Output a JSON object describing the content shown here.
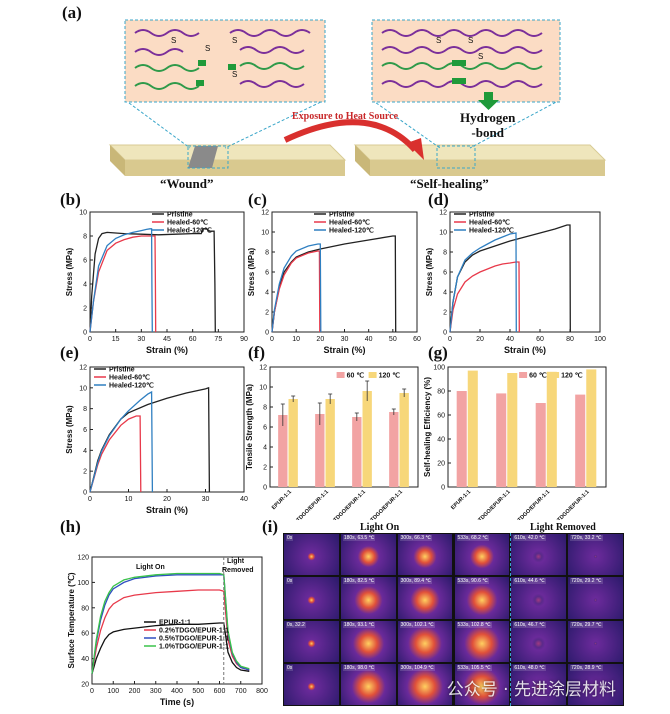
{
  "panel_a": {
    "label": "(a)",
    "bond_label": "S",
    "arrow_label": "Exposure to Heat Source",
    "hydrogen_label_1": "Hydrogen",
    "hydrogen_label_2": "-bond",
    "wound_label": "“Wound”",
    "healing_label": "“Self-healing”"
  },
  "colors": {
    "pristine": "#222222",
    "healed60": "#e8394a",
    "healed120": "#2f7fc1",
    "bar60": "#f2a3a3",
    "bar120": "#f7d77a"
  },
  "chart_data": [
    {
      "id": "b",
      "label": "(b)",
      "type": "line",
      "xlabel": "Strain (%)",
      "ylabel": "Stress (MPa)",
      "xlim": [
        0,
        90
      ],
      "ylim": [
        0,
        10
      ],
      "xticks": [
        0,
        15,
        30,
        45,
        60,
        75,
        90
      ],
      "yticks": [
        0,
        2,
        4,
        6,
        8,
        10
      ],
      "series": [
        {
          "name": "Pristine",
          "color": "#222222",
          "x": [
            0,
            1,
            3,
            5,
            7,
            10,
            20,
            30,
            40,
            50,
            60,
            65,
            66,
            68,
            70,
            72.5,
            73,
            73.2
          ],
          "y": [
            0,
            3,
            6.5,
            7.8,
            8.2,
            8.3,
            8.2,
            8.15,
            8.1,
            8.15,
            8.2,
            8.2,
            8.6,
            8.6,
            8.4,
            8.4,
            4,
            0
          ]
        },
        {
          "name": "Healed-60℃",
          "color": "#e8394a",
          "x": [
            0,
            2,
            5,
            10,
            15,
            20,
            25,
            30,
            35,
            38,
            38.2,
            38.4
          ],
          "y": [
            0,
            2.5,
            5,
            6.8,
            7.4,
            7.7,
            7.9,
            8,
            8,
            8,
            4,
            0
          ]
        },
        {
          "name": "Healed-120℃",
          "color": "#2f7fc1",
          "x": [
            0,
            2,
            5,
            10,
            15,
            20,
            25,
            30,
            33,
            35,
            36,
            36.2,
            36.4
          ],
          "y": [
            0,
            2.5,
            5.5,
            7.2,
            7.8,
            8.1,
            8.3,
            8.45,
            8.55,
            8.6,
            8.6,
            4,
            0
          ]
        }
      ]
    },
    {
      "id": "c",
      "label": "(c)",
      "type": "line",
      "xlabel": "Strain (%)",
      "ylabel": "Stress (MPa)",
      "xlim": [
        0,
        60
      ],
      "ylim": [
        0,
        12
      ],
      "xticks": [
        0,
        10,
        20,
        30,
        40,
        50,
        60
      ],
      "yticks": [
        0,
        2,
        4,
        6,
        8,
        10,
        12
      ],
      "series": [
        {
          "name": "Pristine",
          "color": "#222222",
          "x": [
            0,
            1,
            3,
            5,
            8,
            10,
            15,
            20,
            30,
            40,
            50,
            51,
            51.2
          ],
          "y": [
            0,
            2,
            4.5,
            6,
            7,
            7.5,
            8,
            8.3,
            8.8,
            9.2,
            9.6,
            9.6,
            0
          ]
        },
        {
          "name": "Healed-60℃",
          "color": "#e8394a",
          "x": [
            0,
            1,
            3,
            5,
            8,
            10,
            15,
            19,
            19.6,
            19.8
          ],
          "y": [
            0,
            2,
            4.3,
            5.7,
            6.9,
            7.4,
            7.9,
            8.1,
            8.1,
            0
          ]
        },
        {
          "name": "Healed-120℃",
          "color": "#2f7fc1",
          "x": [
            0,
            1,
            3,
            5,
            8,
            10,
            15,
            19,
            20,
            20.2
          ],
          "y": [
            0,
            2.2,
            4.8,
            6.4,
            7.6,
            8.1,
            8.6,
            8.8,
            8.8,
            0
          ]
        }
      ]
    },
    {
      "id": "d",
      "label": "(d)",
      "type": "line",
      "xlabel": "Strain (%)",
      "ylabel": "Stress (MPa)",
      "xlim": [
        0,
        100
      ],
      "ylim": [
        0,
        12
      ],
      "xticks": [
        0,
        20,
        40,
        60,
        80,
        100
      ],
      "yticks": [
        0,
        2,
        4,
        6,
        8,
        10,
        12
      ],
      "series": [
        {
          "name": "Pristine",
          "color": "#222222",
          "x": [
            0,
            2,
            5,
            10,
            15,
            20,
            30,
            40,
            50,
            60,
            70,
            78,
            80,
            80.2
          ],
          "y": [
            0,
            3,
            5.5,
            7,
            7.7,
            8.1,
            8.6,
            9.1,
            9.5,
            9.9,
            10.3,
            10.7,
            10.7,
            0
          ]
        },
        {
          "name": "Healed-60℃",
          "color": "#e8394a",
          "x": [
            0,
            2,
            5,
            10,
            15,
            20,
            25,
            30,
            35,
            40,
            44,
            46,
            46.2
          ],
          "y": [
            0,
            2.2,
            3.8,
            5,
            5.6,
            6,
            6.3,
            6.6,
            6.8,
            6.9,
            7,
            7,
            0
          ]
        },
        {
          "name": "Healed-120℃",
          "color": "#2f7fc1",
          "x": [
            0,
            2,
            5,
            10,
            15,
            20,
            25,
            30,
            35,
            40,
            44,
            44.2
          ],
          "y": [
            0,
            3,
            5.5,
            7.2,
            7.9,
            8.4,
            8.8,
            9.2,
            9.5,
            9.8,
            9.9,
            0
          ]
        }
      ]
    },
    {
      "id": "e",
      "label": "(e)",
      "type": "line",
      "xlabel": "Strain (%)",
      "ylabel": "Stress (MPa)",
      "xlim": [
        0,
        40
      ],
      "ylim": [
        0,
        12
      ],
      "xticks": [
        0,
        10,
        20,
        30,
        40
      ],
      "yticks": [
        0,
        2,
        4,
        6,
        8,
        10,
        12
      ],
      "series": [
        {
          "name": "Pristine",
          "color": "#222222",
          "x": [
            0,
            1,
            2,
            3,
            5,
            8,
            10,
            15,
            20,
            25,
            30,
            30.8,
            31
          ],
          "y": [
            0,
            1.5,
            3,
            4,
            5.5,
            7,
            7.6,
            8.4,
            9,
            9.5,
            9.9,
            10,
            0
          ]
        },
        {
          "name": "Healed-60℃",
          "color": "#e8394a",
          "x": [
            0,
            1,
            2,
            3,
            5,
            8,
            10,
            12,
            13,
            13.2
          ],
          "y": [
            0,
            1.3,
            2.6,
            3.6,
            5,
            6.4,
            7,
            7.3,
            7.3,
            0
          ]
        },
        {
          "name": "Healed-120℃",
          "color": "#2f7fc1",
          "x": [
            0,
            1,
            2,
            3,
            5,
            8,
            10,
            13,
            15,
            16,
            16.2
          ],
          "y": [
            0,
            1.4,
            2.8,
            3.9,
            5.4,
            7,
            7.8,
            8.8,
            9.4,
            9.6,
            0
          ]
        }
      ]
    },
    {
      "id": "f",
      "label": "(f)",
      "type": "bar",
      "ylabel": "Tensile Strength (MPa)",
      "ylim": [
        0,
        12
      ],
      "yticks": [
        0,
        2,
        4,
        6,
        8,
        10,
        12
      ],
      "categories": [
        "EPUR-1:1",
        "0.2%TDGO/EPUR-1:1",
        "0.5%TDGO/EPUR-1:1",
        "1.0%TDGO/EPUR-1:1"
      ],
      "series": [
        {
          "name": "60 ℃",
          "color": "#f2a3a3",
          "values": [
            7.2,
            7.3,
            7.0,
            7.5
          ],
          "errors": [
            1.1,
            1.1,
            0.4,
            0.3
          ]
        },
        {
          "name": "120 ℃",
          "color": "#f7d77a",
          "values": [
            8.8,
            8.8,
            9.6,
            9.4
          ],
          "errors": [
            0.3,
            0.5,
            1.0,
            0.4
          ]
        }
      ]
    },
    {
      "id": "g",
      "label": "(g)",
      "type": "bar",
      "ylabel": "Self-healing Efficiency (%)",
      "ylim": [
        0,
        100
      ],
      "yticks": [
        0,
        20,
        40,
        60,
        80,
        100
      ],
      "categories": [
        "EPUR-1:1",
        "0.2%TDGO/EPUR-1:1",
        "0.5%TDGO/EPUR-1:1",
        "1.0%TDGO/EPUR-1:1"
      ],
      "series": [
        {
          "name": "60 ℃",
          "color": "#f2a3a3",
          "values": [
            80,
            78,
            70,
            77
          ]
        },
        {
          "name": "120 ℃",
          "color": "#f7d77a",
          "values": [
            97,
            95,
            96,
            98
          ]
        }
      ]
    },
    {
      "id": "h",
      "label": "(h)",
      "type": "line",
      "xlabel": "Time (s)",
      "ylabel": "Surface Temperature (℃)",
      "xlim": [
        0,
        800
      ],
      "ylim": [
        20,
        120
      ],
      "xticks": [
        0,
        100,
        200,
        300,
        400,
        500,
        600,
        700,
        800
      ],
      "yticks": [
        20,
        40,
        60,
        80,
        100,
        120
      ],
      "annotations": [
        "Light On",
        "Light",
        "Removed"
      ],
      "light_off_x": 620,
      "series": [
        {
          "name": "EPUR-1:1",
          "color": "#111111",
          "x": [
            0,
            20,
            40,
            60,
            80,
            100,
            150,
            200,
            300,
            400,
            500,
            600,
            620,
            640,
            660,
            680,
            700,
            740
          ],
          "y": [
            28,
            40,
            48,
            55,
            59,
            61,
            63,
            64,
            66,
            67,
            67,
            68,
            68,
            45,
            37,
            33,
            31,
            30
          ]
        },
        {
          "name": "0.2%TDGO/EPUR-1:1",
          "color": "#e8394a",
          "x": [
            0,
            20,
            40,
            60,
            80,
            100,
            150,
            200,
            300,
            400,
            500,
            600,
            620,
            640,
            660,
            680,
            700,
            740
          ],
          "y": [
            28,
            48,
            62,
            72,
            79,
            83,
            88,
            90,
            92,
            93,
            94,
            94,
            93,
            55,
            42,
            36,
            33,
            31
          ]
        },
        {
          "name": "0.5%TDGO/EPUR-1:1",
          "color": "#2f4fc1",
          "x": [
            0,
            20,
            40,
            60,
            80,
            100,
            150,
            200,
            300,
            400,
            500,
            600,
            620,
            640,
            660,
            680,
            700,
            740
          ],
          "y": [
            28,
            53,
            70,
            82,
            90,
            95,
            100,
            103,
            105,
            106,
            106,
            106,
            106,
            60,
            44,
            37,
            33,
            31
          ]
        },
        {
          "name": "1.0%TDGO/EPUR-1:1",
          "color": "#3ac24a",
          "x": [
            0,
            20,
            40,
            60,
            80,
            100,
            150,
            200,
            300,
            400,
            500,
            600,
            620,
            640,
            660,
            680,
            700,
            740
          ],
          "y": [
            28,
            55,
            73,
            85,
            92,
            97,
            102,
            104,
            106,
            107,
            107,
            107,
            106,
            62,
            45,
            38,
            34,
            32
          ]
        }
      ]
    }
  ],
  "panel_i": {
    "label": "(i)",
    "light_on": "Light On",
    "light_removed": "Light Removed",
    "rows": [
      [
        "0s",
        "180s, 63.5 ℃",
        "300s, 66.3 ℃",
        "533s, 68.2 ℃",
        "610s, 42.0 ℃",
        "720s, 33.2 ℃"
      ],
      [
        "0s",
        "180s, 82.5 ℃",
        "300s, 89.4 ℃",
        "533s, 90.6 ℃",
        "610s, 44.6 ℃",
        "720s, 29.2 ℃"
      ],
      [
        "0s, 32.2",
        "180s, 93.1 ℃",
        "300s, 102.1 ℃",
        "533s, 102.8 ℃",
        "610s, 46.7 ℃",
        "720s, 29.7 ℃"
      ],
      [
        "0s",
        "180s, 98.0 ℃",
        "300s, 104.9 ℃",
        "533s, 105.5 ℃",
        "610s, 48.0 ℃",
        "720s, 28.9 ℃"
      ]
    ],
    "watermark": "公众号 · 先进涂层材料"
  }
}
